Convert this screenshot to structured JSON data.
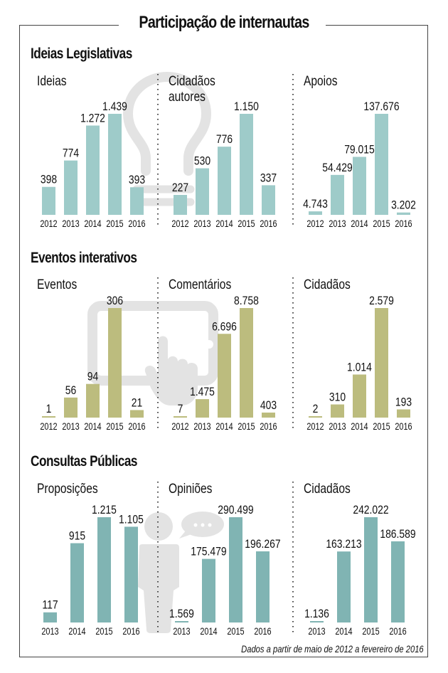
{
  "title": "Participação de internautas",
  "footer": "Dados a partir de maio de 2012 a fevereiro de 2016",
  "colors": {
    "ideias": "#9ecbc9",
    "eventos": "#bcbc7e",
    "consultas": "#80b4b3",
    "watermark": "#e3e3e3"
  },
  "sections": [
    {
      "title": "Ideias Legislativas",
      "watermark": "lightbulb-icon"
    },
    {
      "title": "Eventos interativos",
      "watermark": "tablet-touch-icon"
    },
    {
      "title": "Consultas Públicas",
      "watermark": "person-speech-icon"
    }
  ],
  "chart_data": [
    {
      "type": "bar",
      "section": "Ideias Legislativas",
      "title": "Ideias",
      "categories": [
        "2012",
        "2013",
        "2014",
        "2015",
        "2016"
      ],
      "values": [
        398,
        774,
        1272,
        1439,
        393
      ],
      "labels": [
        "398",
        "774",
        "1.272",
        "1.439",
        "393"
      ],
      "color": "#9ecbc9"
    },
    {
      "type": "bar",
      "section": "Ideias Legislativas",
      "title": "Cidadãos autores",
      "categories": [
        "2012",
        "2013",
        "2014",
        "2015",
        "2016"
      ],
      "values": [
        227,
        530,
        776,
        1150,
        337
      ],
      "labels": [
        "227",
        "530",
        "776",
        "1.150",
        "337"
      ],
      "color": "#9ecbc9"
    },
    {
      "type": "bar",
      "section": "Ideias Legislativas",
      "title": "Apoios",
      "categories": [
        "2012",
        "2013",
        "2014",
        "2015",
        "2016"
      ],
      "values": [
        4743,
        54429,
        79015,
        137676,
        3202
      ],
      "labels": [
        "4.743",
        "54.429",
        "79.015",
        "137.676",
        "3.202"
      ],
      "color": "#9ecbc9"
    },
    {
      "type": "bar",
      "section": "Eventos interativos",
      "title": "Eventos",
      "categories": [
        "2012",
        "2013",
        "2014",
        "2015",
        "2016"
      ],
      "values": [
        1,
        56,
        94,
        306,
        21
      ],
      "labels": [
        "1",
        "56",
        "94",
        "306",
        "21"
      ],
      "color": "#bcbc7e"
    },
    {
      "type": "bar",
      "section": "Eventos interativos",
      "title": "Comentários",
      "categories": [
        "2012",
        "2013",
        "2014",
        "2015",
        "2016"
      ],
      "values": [
        7,
        1475,
        6696,
        8758,
        403
      ],
      "labels": [
        "7",
        "1.475",
        "6.696",
        "8.758",
        "403"
      ],
      "color": "#bcbc7e"
    },
    {
      "type": "bar",
      "section": "Eventos interativos",
      "title": "Cidadãos",
      "categories": [
        "2012",
        "2013",
        "2014",
        "2015",
        "2016"
      ],
      "values": [
        2,
        310,
        1014,
        2579,
        193
      ],
      "labels": [
        "2",
        "310",
        "1.014",
        "2.579",
        "193"
      ],
      "color": "#bcbc7e"
    },
    {
      "type": "bar",
      "section": "Consultas Públicas",
      "title": "Proposições",
      "categories": [
        "2013",
        "2014",
        "2015",
        "2016"
      ],
      "values": [
        117,
        915,
        1215,
        1105
      ],
      "labels": [
        "117",
        "915",
        "1.215",
        "1.105"
      ],
      "color": "#80b4b3"
    },
    {
      "type": "bar",
      "section": "Consultas Públicas",
      "title": "Opiniões",
      "categories": [
        "2013",
        "2014",
        "2015",
        "2016"
      ],
      "values": [
        1569,
        175479,
        290499,
        196267
      ],
      "labels": [
        "1.569",
        "175.479",
        "290.499",
        "196.267"
      ],
      "color": "#80b4b3"
    },
    {
      "type": "bar",
      "section": "Consultas Públicas",
      "title": "Cidadãos",
      "categories": [
        "2013",
        "2014",
        "2015",
        "2016"
      ],
      "values": [
        1136,
        163213,
        242022,
        186589
      ],
      "labels": [
        "1.136",
        "163.213",
        "242.022",
        "186.589"
      ],
      "color": "#80b4b3"
    }
  ]
}
